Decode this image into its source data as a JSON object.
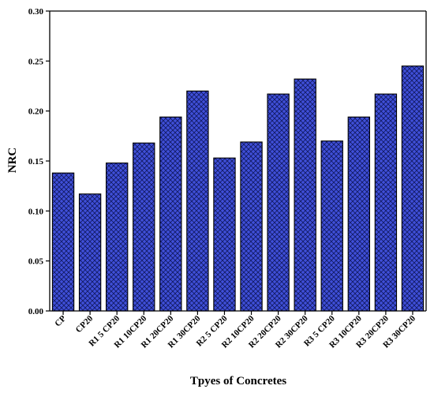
{
  "chart_data": {
    "type": "bar",
    "title": "",
    "xlabel": "Tpyes of Concretes",
    "ylabel": "NRC",
    "ylim": [
      0,
      0.3
    ],
    "yticks": [
      "0.00",
      "0.05",
      "0.10",
      "0.15",
      "0.20",
      "0.25",
      "0.30"
    ],
    "grid": false,
    "bar_color": "#3f4fd8",
    "bar_pattern": "crosshatch",
    "categories": [
      "CP",
      "CP20",
      "R1 5 CP20",
      "R1 10CP20",
      "R1 20CP20",
      "R1 30CP20",
      "R2 5 CP20",
      "R2 10CP20",
      "R2 20CP20",
      "R2 30CP20",
      "R3 5 CP20",
      "R3 10CP20",
      "R3 20CP20",
      "R3 30CP20"
    ],
    "values": [
      0.138,
      0.117,
      0.148,
      0.168,
      0.194,
      0.22,
      0.153,
      0.169,
      0.217,
      0.232,
      0.17,
      0.194,
      0.217,
      0.245
    ]
  }
}
